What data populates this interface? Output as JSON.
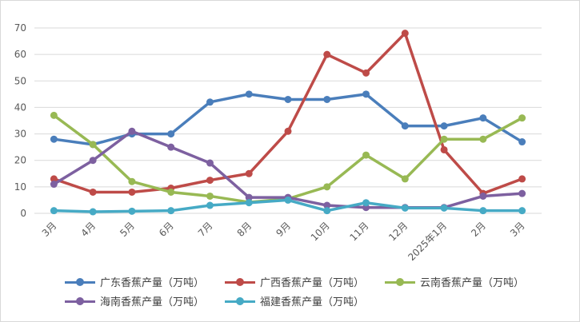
{
  "chart_data": {
    "type": "line",
    "title": "",
    "xlabel": "",
    "ylabel": "",
    "ylim": [
      0,
      70
    ],
    "yticks": [
      0,
      10,
      20,
      30,
      40,
      50,
      60,
      70
    ],
    "grid": true,
    "legend_position": "bottom",
    "categories": [
      "3月",
      "4月",
      "5月",
      "6月",
      "7月",
      "8月",
      "9月",
      "10月",
      "11月",
      "12月",
      "2025年1月",
      "2月",
      "3月"
    ],
    "series": [
      {
        "name": "广东香蕉产量（万吨）",
        "color": "#4a7ebb",
        "values": [
          28,
          26,
          30,
          30,
          42,
          45,
          43,
          43,
          45,
          33,
          33,
          36,
          27
        ]
      },
      {
        "name": "广西香蕉产量（万吨）",
        "color": "#be4b48",
        "values": [
          13,
          8,
          8,
          9.5,
          12.5,
          15,
          31,
          60,
          53,
          68,
          24,
          7.5,
          13
        ]
      },
      {
        "name": "云南香蕉产量（万吨）",
        "color": "#98b954",
        "values": [
          37,
          26,
          12,
          8,
          6.5,
          4.2,
          5.5,
          10,
          22,
          13,
          28,
          28,
          36
        ]
      },
      {
        "name": "海南香蕉产量（万吨）",
        "color": "#7d60a0",
        "values": [
          11,
          20,
          31,
          25,
          19,
          6,
          6,
          3,
          2.2,
          2.2,
          2.2,
          6.5,
          7.5
        ]
      },
      {
        "name": "福建香蕉产量（万吨）",
        "color": "#46aac5",
        "values": [
          1,
          0.6,
          0.8,
          1,
          3,
          4,
          5,
          1,
          4,
          2,
          2,
          1,
          1
        ]
      }
    ]
  }
}
